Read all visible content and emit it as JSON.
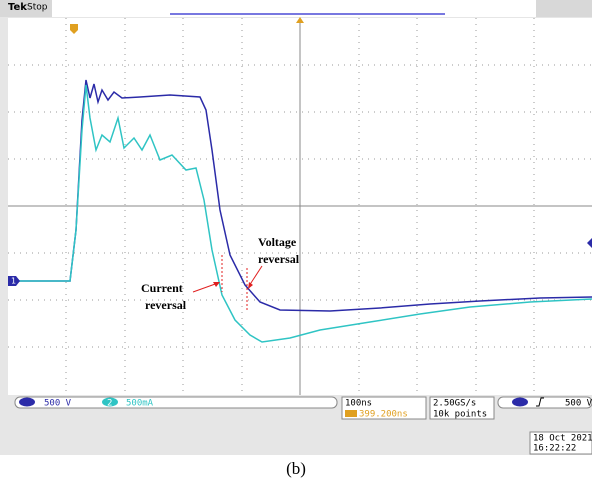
{
  "header": {
    "brand": "Tek",
    "status": "Stop"
  },
  "channel_marker": "1",
  "annotations": {
    "voltage": [
      "Voltage",
      "reversal"
    ],
    "current": [
      "Current",
      "reversal"
    ]
  },
  "status_bar": {
    "ch1_scale": "500 V",
    "ch2_number": "2",
    "ch2_scale": "500mA",
    "timebase": "100ns",
    "trigger_position": "399.200ns",
    "sample_rate": "2.50GS/s",
    "record_length": "10k points",
    "trigger_level": "500 V",
    "date": "18 Oct  2021",
    "time": "16:22:22"
  },
  "caption": "(b)"
}
